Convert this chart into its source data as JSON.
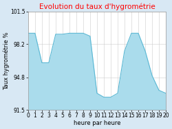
{
  "title": "Evolution du taux d'hygrométrie",
  "xlabel": "heure par heure",
  "ylabel": "Taux hygrométrie %",
  "ylim": [
    91.5,
    101.5
  ],
  "yticks": [
    91.5,
    94.8,
    98.2,
    101.5
  ],
  "ytick_labels": [
    "91.5",
    "94.8",
    "98.2",
    "101.5"
  ],
  "xlim": [
    0,
    20
  ],
  "xticks": [
    0,
    1,
    2,
    3,
    4,
    5,
    6,
    7,
    8,
    9,
    10,
    11,
    12,
    13,
    14,
    15,
    16,
    17,
    18,
    19,
    20
  ],
  "hours": [
    0,
    1,
    2,
    3,
    4,
    5,
    6,
    7,
    8,
    9,
    10,
    11,
    12,
    13,
    14,
    15,
    16,
    17,
    18,
    19,
    20
  ],
  "values": [
    99.3,
    99.3,
    96.3,
    96.3,
    99.2,
    99.2,
    99.3,
    99.3,
    99.3,
    99.0,
    93.2,
    92.8,
    92.8,
    93.2,
    97.5,
    99.3,
    99.3,
    97.5,
    95.0,
    93.5,
    93.2
  ],
  "line_color": "#5bb8d4",
  "fill_color": "#aadcec",
  "fill_alpha": 1.0,
  "bg_color": "#d8e8f4",
  "plot_bg_color": "#ffffff",
  "title_color": "#ff0000",
  "title_fontsize": 7.5,
  "axis_fontsize": 5.5,
  "label_fontsize": 6.0,
  "grid_color": "#cccccc",
  "grid_linewidth": 0.4
}
